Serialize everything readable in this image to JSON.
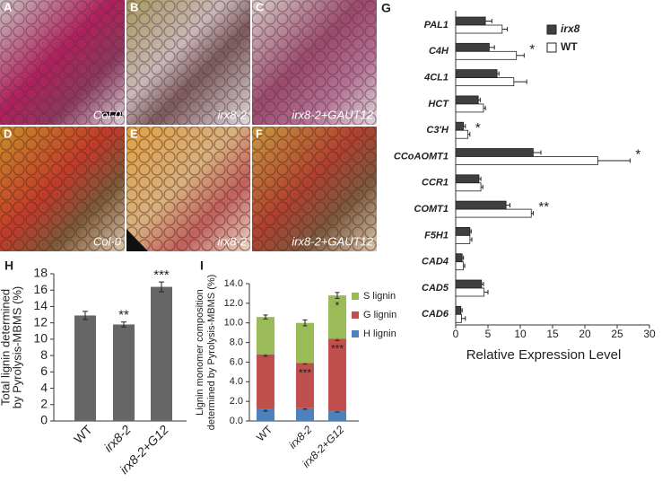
{
  "image_panels": [
    {
      "letter": "A",
      "caption": "Col-0"
    },
    {
      "letter": "B",
      "caption": "irx8-2"
    },
    {
      "letter": "C",
      "caption": "irx8-2+GAUT12"
    },
    {
      "letter": "D",
      "caption": "Col-0"
    },
    {
      "letter": "E",
      "caption": "irx8-2"
    },
    {
      "letter": "F",
      "caption": "irx8-2+GAUT12"
    }
  ],
  "chart_data": [
    {
      "type": "hbar",
      "panel": "G",
      "categories": [
        "PAL1",
        "C4H",
        "4CL1",
        "HCT",
        "C3'H",
        "CCoAOMT1",
        "CCR1",
        "COMT1",
        "F5H1",
        "CAD4",
        "CAD5",
        "CAD6"
      ],
      "series": [
        {
          "name": "irx8",
          "color": "#3f3f3f",
          "values": [
            4.6,
            5.2,
            6.4,
            3.5,
            1.2,
            12.0,
            3.6,
            7.8,
            2.2,
            1.0,
            4.0,
            0.8
          ],
          "errors": [
            1.0,
            0.8,
            0.3,
            0.3,
            0.3,
            1.2,
            0.3,
            0.6,
            0.2,
            0.2,
            0.3,
            0.2
          ]
        },
        {
          "name": "WT",
          "color": "#ffffff",
          "values": [
            7.2,
            9.4,
            9.0,
            4.3,
            1.9,
            22.0,
            3.9,
            11.7,
            2.2,
            1.2,
            4.4,
            0.9
          ],
          "errors": [
            0.8,
            1.2,
            2.0,
            0.3,
            0.3,
            5.0,
            0.3,
            0.3,
            0.3,
            0.2,
            0.6,
            0.6
          ]
        }
      ],
      "value_annotations": [
        null,
        "*",
        null,
        null,
        "*",
        "*",
        null,
        "**",
        null,
        null,
        null,
        null
      ],
      "xlim": [
        0,
        30
      ],
      "xticks": [
        0,
        5,
        10,
        15,
        20,
        25,
        30
      ],
      "xlabel": "Relative Expression Level",
      "legend": "upper right"
    },
    {
      "type": "bar",
      "panel": "H",
      "ylabel": [
        "Total lignin determined",
        "by Pyrolysis-MBMS (%)"
      ],
      "categories": [
        "WT",
        "irx8-2",
        "irx8-2+G12"
      ],
      "values": [
        12.9,
        11.8,
        16.4
      ],
      "errors": [
        0.5,
        0.3,
        0.6
      ],
      "color": "#666666",
      "value_annotations": [
        null,
        "**",
        "***"
      ],
      "ylim": [
        0,
        18
      ],
      "yticks": [
        0,
        2,
        4,
        6,
        8,
        10,
        12,
        14,
        16,
        18
      ]
    },
    {
      "type": "stacked_bar",
      "panel": "I",
      "ylabel": [
        "Lignin monomer composition",
        "determined by Pyrolysis-MBMS (%)"
      ],
      "categories": [
        "WT",
        "irx8-2",
        "irx8-2+G12"
      ],
      "series": [
        {
          "name": "S lignin",
          "color": "#9bbb59",
          "values": [
            3.8,
            4.1,
            4.4
          ],
          "errors": [
            0.2,
            0.3,
            0.3
          ],
          "value_annotations": [
            null,
            null,
            "*"
          ]
        },
        {
          "name": "G lignin",
          "color": "#c0504d",
          "values": [
            5.6,
            4.6,
            7.4
          ],
          "errors": [
            0.2,
            0.1,
            0.2
          ],
          "value_annotations": [
            null,
            "***",
            "***"
          ]
        },
        {
          "name": "H lignin",
          "color": "#4f81bd",
          "values": [
            1.2,
            1.3,
            1.0
          ],
          "errors": [
            0.2,
            0.1,
            0.1
          ]
        }
      ],
      "ylim": [
        0,
        14
      ],
      "yticks": [
        {
          "value": 0,
          "label": "0.0"
        },
        {
          "value": 2,
          "label": "2.0"
        },
        {
          "value": 4,
          "label": "4.0"
        },
        {
          "value": 6,
          "label": "6.0"
        },
        {
          "value": 8,
          "label": "8.0"
        },
        {
          "value": 10,
          "label": "10.0"
        },
        {
          "value": 12,
          "label": "12.0"
        },
        {
          "value": 14,
          "label": "14.0"
        }
      ]
    }
  ]
}
